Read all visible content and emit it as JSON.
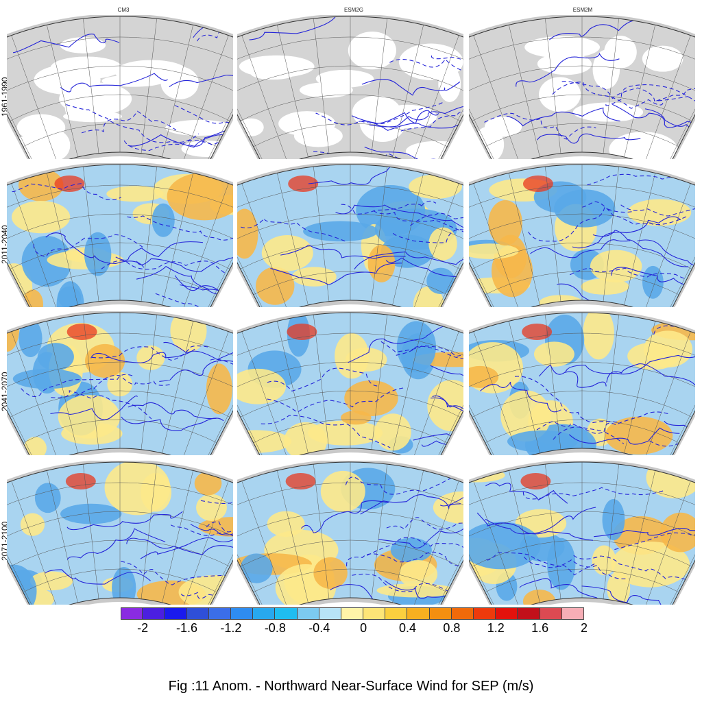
{
  "columns": [
    "CM3",
    "ESM2G",
    "ESM2M"
  ],
  "rows": [
    "1961-1990",
    "2011-2040",
    "2041-2070",
    "2071-2100"
  ],
  "colorbar": {
    "colors": [
      "#8a2be2",
      "#4b1fe0",
      "#1a1aee",
      "#2f4fd8",
      "#3b6ee8",
      "#2e8cf0",
      "#28a8ee",
      "#1fbdf0",
      "#7ccaf0",
      "#b8e4f6",
      "#fff4a8",
      "#fde577",
      "#fbd03f",
      "#f7b020",
      "#f48f10",
      "#f06a0a",
      "#ee3a0c",
      "#e3120c",
      "#c2101a",
      "#dc4a52",
      "#f7aeb6"
    ],
    "tick_labels": [
      "-2",
      "-1.6",
      "-1.2",
      "-0.8",
      "-0.4",
      "0",
      "0.4",
      "0.8",
      "1.2",
      "1.6",
      "2"
    ]
  },
  "map_colors": {
    "land_gray": "#d4d4d4",
    "ocean_white": "#ffffff",
    "contour": "#2424d8",
    "neg_fill": "#a9d4f0",
    "neg_strong": "#5aa8e8",
    "pos_fill": "#fde98a",
    "pos_strong": "#f6b84a",
    "hot": "#e83a20"
  },
  "figure_title": "Fig :11  Anom.  - Northward Near-Surface Wind for SEP (m/s)"
}
